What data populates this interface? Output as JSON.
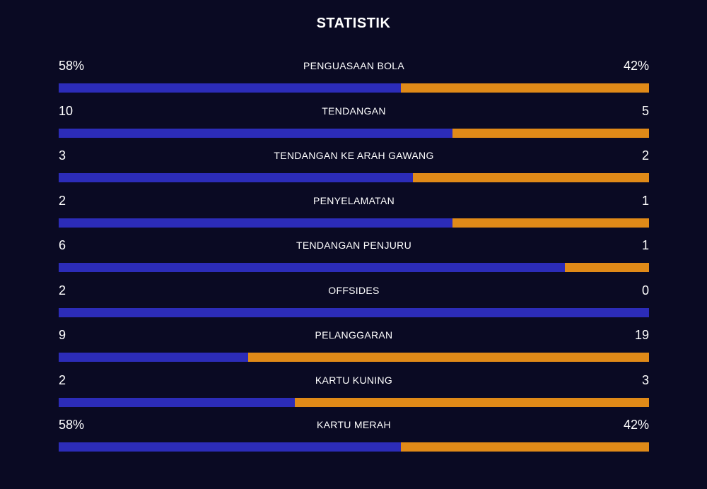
{
  "title": "STATISTIK",
  "colors": {
    "home": "#2c2cb8",
    "away": "#e08a18",
    "background": "#0a0a23"
  },
  "stats": [
    {
      "label": "PENGUASAAN BOLA",
      "home": "58%",
      "away": "42%",
      "home_share": 0.58
    },
    {
      "label": "TENDANGAN",
      "home": "10",
      "away": "5",
      "home_share": 0.6667
    },
    {
      "label": "TENDANGAN KE ARAH GAWANG",
      "home": "3",
      "away": "2",
      "home_share": 0.6
    },
    {
      "label": "PENYELAMATAN",
      "home": "2",
      "away": "1",
      "home_share": 0.6667
    },
    {
      "label": "TENDANGAN PENJURU",
      "home": "6",
      "away": "1",
      "home_share": 0.8571
    },
    {
      "label": "OFFSIDES",
      "home": "2",
      "away": "0",
      "home_share": 1.0
    },
    {
      "label": "PELANGGARAN",
      "home": "9",
      "away": "19",
      "home_share": 0.3214
    },
    {
      "label": "KARTU KUNING",
      "home": "2",
      "away": "3",
      "home_share": 0.4
    },
    {
      "label": "KARTU MERAH",
      "home": "58%",
      "away": "42%",
      "home_share": 0.58
    }
  ]
}
